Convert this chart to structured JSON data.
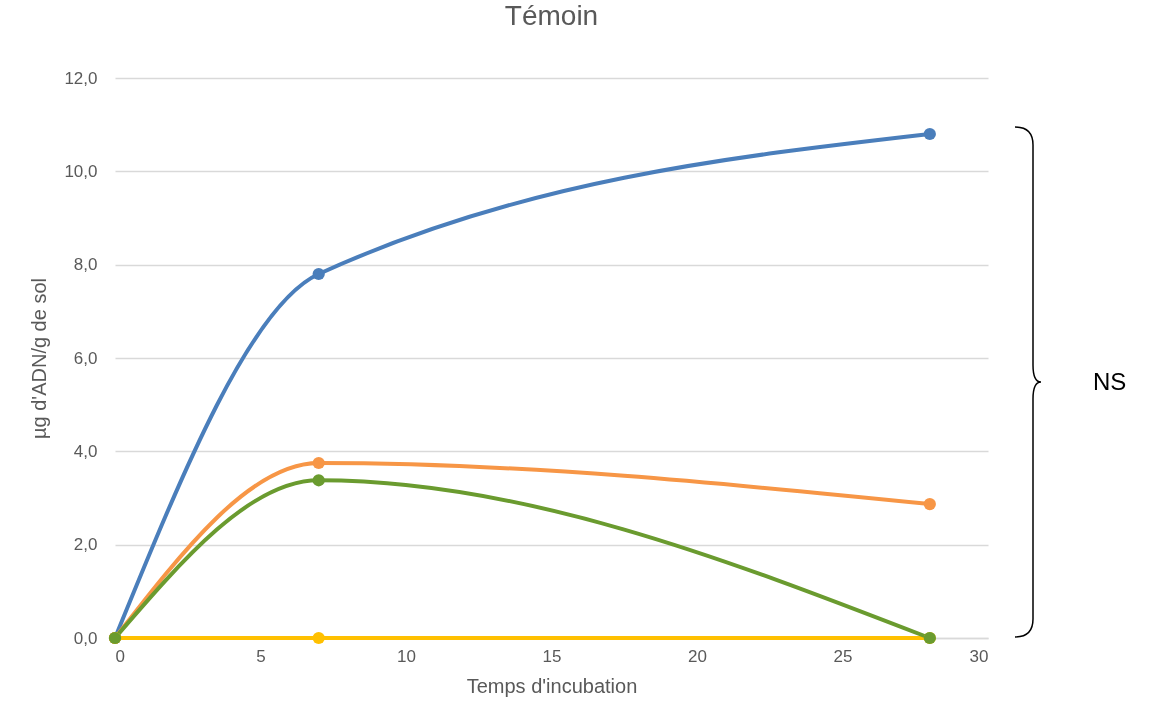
{
  "chart_data": {
    "type": "line",
    "title": "Témoin",
    "xlabel": "Temps d'incubation",
    "ylabel": "µg d'ADN/g de sol",
    "x": [
      0,
      7,
      28
    ],
    "series": [
      {
        "color": "#4a7ebb",
        "values": [
          0,
          7.8,
          10.8
        ]
      },
      {
        "color": "#f79646",
        "values": [
          0,
          3.75,
          2.87
        ]
      },
      {
        "color": "#ffc000",
        "values": [
          0,
          0,
          0
        ]
      },
      {
        "color": "#6a9b2f",
        "values": [
          0,
          3.38,
          0
        ]
      }
    ],
    "xlim": [
      0,
      30
    ],
    "xticks": [
      0,
      5,
      10,
      15,
      20,
      25,
      30
    ],
    "ylim": [
      0,
      12
    ],
    "yticks": [
      {
        "value": 0,
        "label": "0,0"
      },
      {
        "value": 2,
        "label": "2,0"
      },
      {
        "value": 4,
        "label": "4,0"
      },
      {
        "value": 6,
        "label": "6,0"
      },
      {
        "value": 8,
        "label": "8,0"
      },
      {
        "value": 10,
        "label": "10,0"
      },
      {
        "value": 12,
        "label": "12,0"
      }
    ],
    "grid": "y",
    "marker": "circle",
    "line_style": "solid",
    "legend": false,
    "annotations": [
      "NS"
    ]
  }
}
